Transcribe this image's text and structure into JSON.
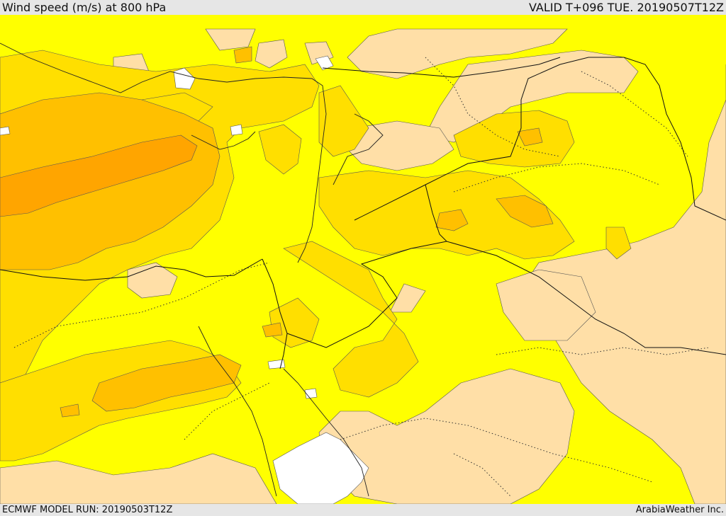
{
  "header": {
    "title": "Wind speed (m/s) at 800 hPa",
    "valid_time": "VALID T+096 TUE. 20190507T12Z"
  },
  "footer": {
    "model_run": "ECMWF MODEL RUN: 20190503T12Z",
    "credit": "ArabiaWeather Inc."
  },
  "map": {
    "fill_colors": {
      "background": "#ffff00",
      "light": "#ffdfa7",
      "mid": "#ffdf00",
      "strong": "#ffc000",
      "stronger": "#ffa500",
      "calm": "#ffffff"
    }
  }
}
